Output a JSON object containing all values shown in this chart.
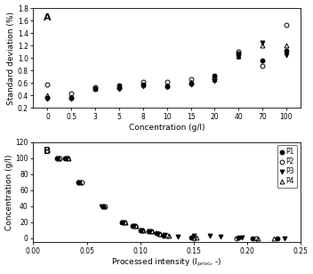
{
  "panel_A": {
    "xlabel": "Concentration (g/l)",
    "ylabel": "Standard deviation (%)",
    "label": "A",
    "xtick_labels": [
      "0",
      "0.5",
      "3",
      "5",
      "8",
      "10",
      "15",
      "20",
      "40",
      "70",
      "100"
    ],
    "ylim": [
      0.2,
      1.8
    ],
    "yticks": [
      0.2,
      0.4,
      0.6,
      0.8,
      1.0,
      1.2,
      1.4,
      1.6,
      1.8
    ],
    "P1": {
      "xi": [
        0,
        1,
        2,
        3,
        4,
        5,
        6,
        7,
        8,
        9,
        10
      ],
      "y": [
        0.37,
        0.37,
        0.5,
        0.56,
        0.57,
        0.55,
        0.59,
        0.72,
        1.08,
        0.96,
        1.12
      ]
    },
    "P2": {
      "xi": [
        0,
        1,
        2,
        3,
        4,
        5,
        6,
        7,
        8,
        9,
        10
      ],
      "y": [
        0.57,
        0.44,
        0.54,
        0.52,
        0.62,
        0.62,
        0.66,
        0.67,
        1.1,
        0.88,
        1.53
      ]
    },
    "P3": {
      "xi": [
        0,
        1,
        2,
        3,
        4,
        5,
        6,
        7,
        8,
        9,
        10
      ],
      "y": [
        0.35,
        0.35,
        0.5,
        0.51,
        0.55,
        0.54,
        0.57,
        0.64,
        1.02,
        1.25,
        1.05
      ]
    },
    "P4": {
      "xi": [
        0,
        1,
        2,
        3,
        4,
        5,
        6,
        7,
        8,
        9,
        10
      ],
      "y": [
        0.4,
        0.38,
        0.52,
        0.55,
        0.58,
        0.56,
        0.62,
        0.66,
        1.03,
        1.2,
        1.2
      ]
    }
  },
  "panel_B": {
    "xlabel": "Processed intensity (I",
    "xlabel_sub": "proc",
    "xlabel_end": ", -)",
    "ylabel": "Concentration (g/l)",
    "label": "B",
    "xlim": [
      0.0,
      0.25
    ],
    "xticks": [
      0.0,
      0.05,
      0.1,
      0.15,
      0.2,
      0.25
    ],
    "ylim": [
      -5,
      120
    ],
    "yticks": [
      0,
      20,
      40,
      60,
      80,
      100,
      120
    ],
    "P1": {
      "x": [
        0.022,
        0.03,
        0.042,
        0.065,
        0.083,
        0.093,
        0.1,
        0.108,
        0.115,
        0.122,
        0.148,
        0.192,
        0.205,
        0.228
      ],
      "y": [
        100,
        100,
        70,
        40,
        20,
        15,
        10,
        8,
        6,
        3,
        1,
        1,
        0,
        0
      ]
    },
    "P2": {
      "x": [
        0.025,
        0.032,
        0.045,
        0.067,
        0.085,
        0.095,
        0.102,
        0.11,
        0.118,
        0.125,
        0.15,
        0.19,
        0.208
      ],
      "y": [
        100,
        100,
        70,
        40,
        20,
        15,
        10,
        8,
        5,
        3,
        0,
        0,
        0
      ]
    },
    "P3": {
      "x": [
        0.023,
        0.031,
        0.043,
        0.064,
        0.084,
        0.094,
        0.101,
        0.109,
        0.116,
        0.123,
        0.135,
        0.15,
        0.165,
        0.175,
        0.195,
        0.235
      ],
      "y": [
        100,
        100,
        70,
        40,
        20,
        15,
        10,
        8,
        5,
        4,
        2,
        3,
        3,
        2,
        1,
        0
      ]
    },
    "P4": {
      "x": [
        0.024,
        0.033,
        0.044,
        0.066,
        0.086,
        0.096,
        0.103,
        0.111,
        0.119,
        0.127,
        0.153,
        0.21,
        0.225
      ],
      "y": [
        100,
        100,
        70,
        40,
        20,
        15,
        10,
        8,
        5,
        3,
        1,
        0,
        0
      ]
    }
  },
  "markers": {
    "P1": {
      "marker": "o",
      "fillstyle": "full",
      "color": "black",
      "ms": 3.5
    },
    "P2": {
      "marker": "o",
      "fillstyle": "none",
      "color": "black",
      "ms": 3.5
    },
    "P3": {
      "marker": "v",
      "fillstyle": "full",
      "color": "black",
      "ms": 3.5
    },
    "P4": {
      "marker": "^",
      "fillstyle": "none",
      "color": "black",
      "ms": 3.5
    }
  }
}
